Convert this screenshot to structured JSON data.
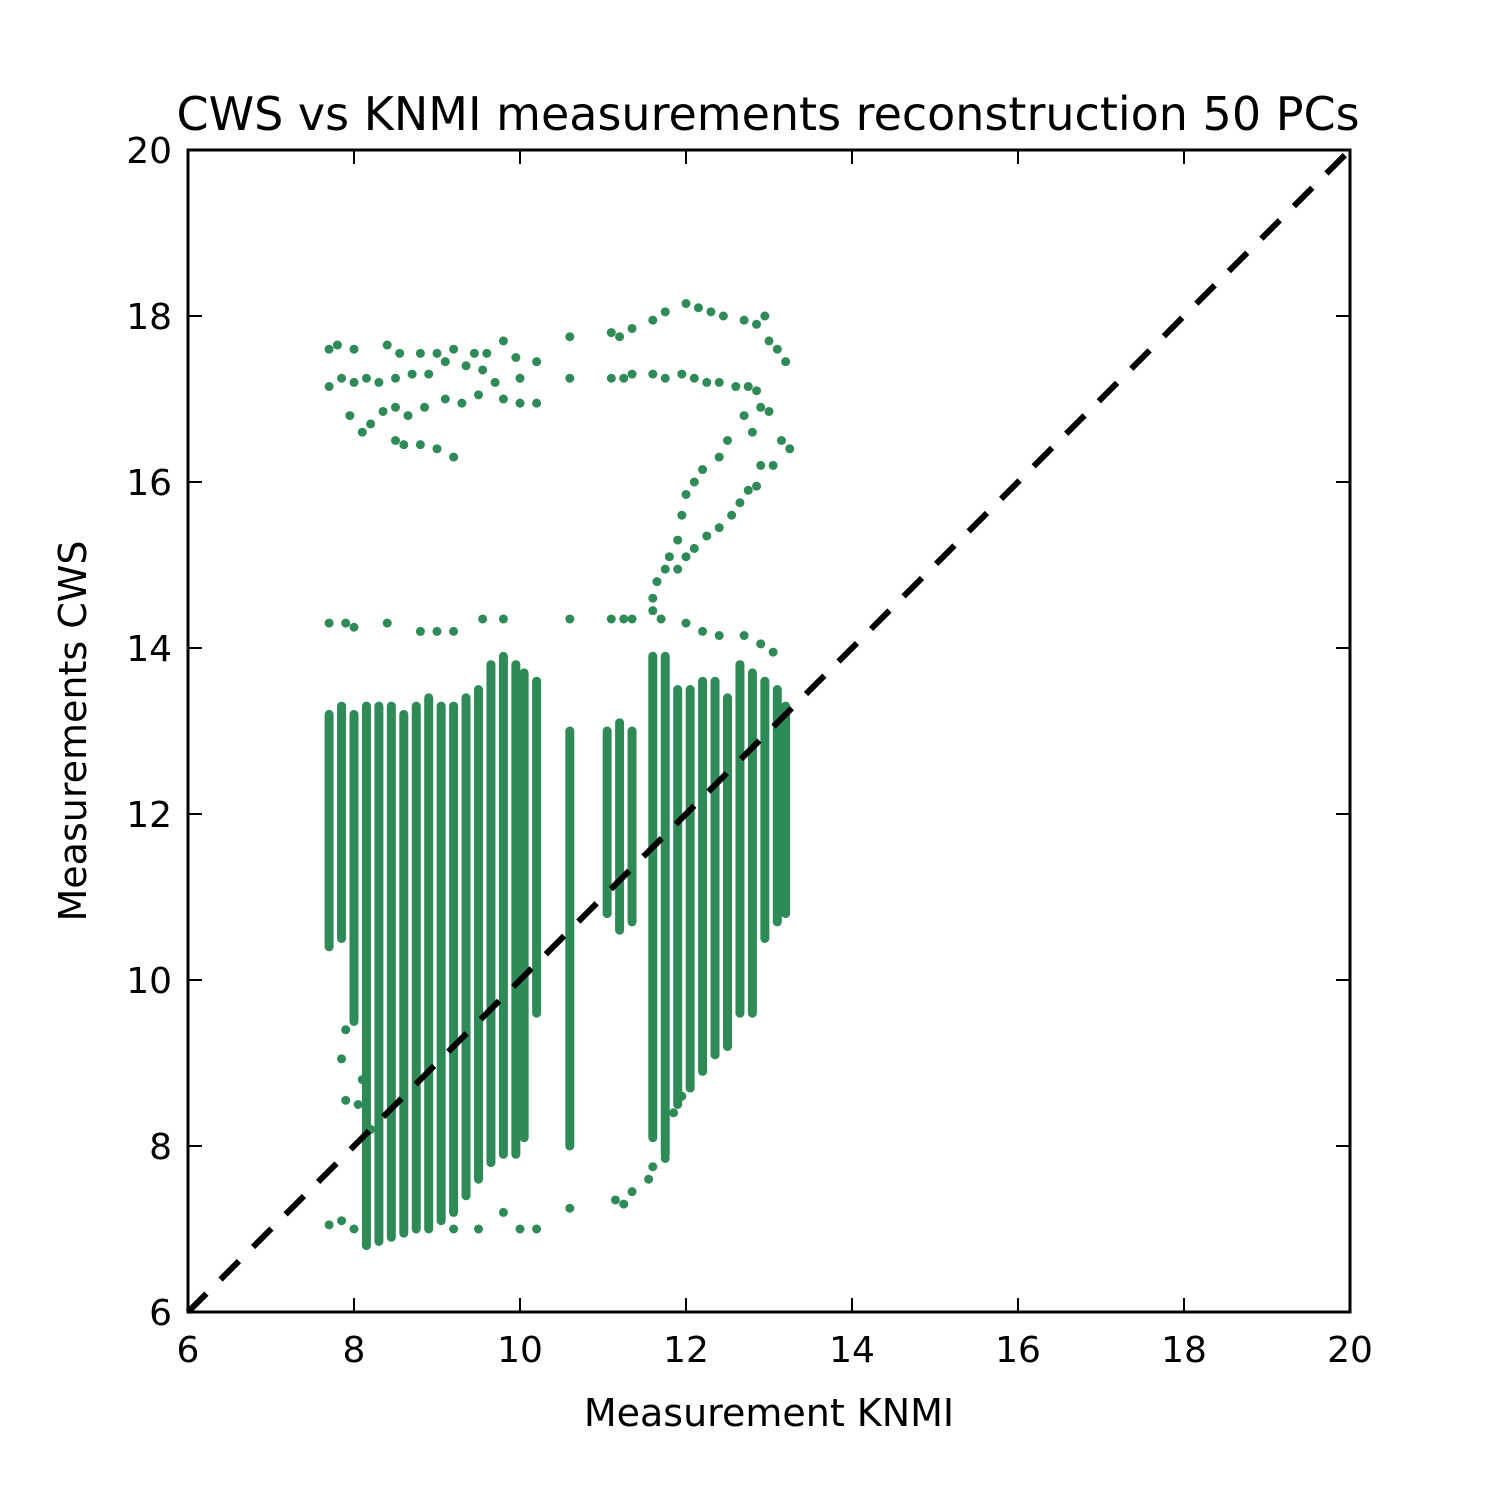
{
  "chart_data": {
    "type": "scatter",
    "title": "CWS vs KNMI measurements reconstruction 50 PCs",
    "xlabel": "Measurement KNMI",
    "ylabel": "Measurements CWS",
    "xlim": [
      6,
      20
    ],
    "ylim": [
      6,
      20
    ],
    "xticks": [
      "6",
      "8",
      "10",
      "12",
      "14",
      "16",
      "18",
      "20"
    ],
    "yticks": [
      "6",
      "8",
      "10",
      "12",
      "14",
      "16",
      "18",
      "20"
    ],
    "grid": false,
    "legend": "none",
    "point_color": "#2e8b57",
    "reference_line": {
      "x": [
        6,
        20
      ],
      "y": [
        6,
        20
      ],
      "style": "dashed",
      "color": "#000000"
    },
    "series": [
      {
        "columns": [
          {
            "x": 7.7,
            "ymin": 10.4,
            "ymax": 13.2
          },
          {
            "x": 7.85,
            "ymin": 10.5,
            "ymax": 13.3
          },
          {
            "x": 8.0,
            "ymin": 9.5,
            "ymax": 13.2
          },
          {
            "x": 8.15,
            "ymin": 6.8,
            "ymax": 13.3
          },
          {
            "x": 8.3,
            "ymin": 6.85,
            "ymax": 13.3
          },
          {
            "x": 8.45,
            "ymin": 6.9,
            "ymax": 13.3
          },
          {
            "x": 8.6,
            "ymin": 6.95,
            "ymax": 13.2
          },
          {
            "x": 8.75,
            "ymin": 7.0,
            "ymax": 13.3
          },
          {
            "x": 8.9,
            "ymin": 7.0,
            "ymax": 13.4
          },
          {
            "x": 9.05,
            "ymin": 7.1,
            "ymax": 13.3
          },
          {
            "x": 9.2,
            "ymin": 7.2,
            "ymax": 13.3
          },
          {
            "x": 9.35,
            "ymin": 7.4,
            "ymax": 13.4
          },
          {
            "x": 9.5,
            "ymin": 7.6,
            "ymax": 13.5
          },
          {
            "x": 9.65,
            "ymin": 7.8,
            "ymax": 13.8
          },
          {
            "x": 9.8,
            "ymin": 7.9,
            "ymax": 13.9
          },
          {
            "x": 9.95,
            "ymin": 7.9,
            "ymax": 13.8
          },
          {
            "x": 10.05,
            "ymin": 8.1,
            "ymax": 13.7
          },
          {
            "x": 10.2,
            "ymin": 9.6,
            "ymax": 13.6
          },
          {
            "x": 10.6,
            "ymin": 8.0,
            "ymax": 13.0
          },
          {
            "x": 11.05,
            "ymin": 10.8,
            "ymax": 13.0
          },
          {
            "x": 11.2,
            "ymin": 10.6,
            "ymax": 13.1
          },
          {
            "x": 11.35,
            "ymin": 10.7,
            "ymax": 13.0
          },
          {
            "x": 11.6,
            "ymin": 8.1,
            "ymax": 13.9
          },
          {
            "x": 11.75,
            "ymin": 7.9,
            "ymax": 13.9
          },
          {
            "x": 11.9,
            "ymin": 8.5,
            "ymax": 13.5
          },
          {
            "x": 12.05,
            "ymin": 8.7,
            "ymax": 13.5
          },
          {
            "x": 12.2,
            "ymin": 8.9,
            "ymax": 13.6
          },
          {
            "x": 12.35,
            "ymin": 9.1,
            "ymax": 13.6
          },
          {
            "x": 12.5,
            "ymin": 9.2,
            "ymax": 13.4
          },
          {
            "x": 12.65,
            "ymin": 9.6,
            "ymax": 13.8
          },
          {
            "x": 12.8,
            "ymin": 9.6,
            "ymax": 13.7
          },
          {
            "x": 12.95,
            "ymin": 10.5,
            "ymax": 13.6
          },
          {
            "x": 13.1,
            "ymin": 10.7,
            "ymax": 13.5
          },
          {
            "x": 13.2,
            "ymin": 10.8,
            "ymax": 13.3
          }
        ],
        "points": [
          [
            7.7,
            17.6
          ],
          [
            7.8,
            17.65
          ],
          [
            8.0,
            17.6
          ],
          [
            7.7,
            17.15
          ],
          [
            7.85,
            17.25
          ],
          [
            8.0,
            17.2
          ],
          [
            8.15,
            17.25
          ],
          [
            8.3,
            17.2
          ],
          [
            8.4,
            17.65
          ],
          [
            8.55,
            17.55
          ],
          [
            8.8,
            17.55
          ],
          [
            9.0,
            17.55
          ],
          [
            9.2,
            17.6
          ],
          [
            9.45,
            17.55
          ],
          [
            9.6,
            17.55
          ],
          [
            9.8,
            17.7
          ],
          [
            9.95,
            17.5
          ],
          [
            10.2,
            17.45
          ],
          [
            10.6,
            17.75
          ],
          [
            8.5,
            17.25
          ],
          [
            8.7,
            17.3
          ],
          [
            8.9,
            17.3
          ],
          [
            9.1,
            17.45
          ],
          [
            9.35,
            17.4
          ],
          [
            9.55,
            17.35
          ],
          [
            9.7,
            17.2
          ],
          [
            10.0,
            17.25
          ],
          [
            7.95,
            16.8
          ],
          [
            8.1,
            16.6
          ],
          [
            8.2,
            16.7
          ],
          [
            8.35,
            16.85
          ],
          [
            8.5,
            16.9
          ],
          [
            8.65,
            16.8
          ],
          [
            8.85,
            16.9
          ],
          [
            9.1,
            17.0
          ],
          [
            9.3,
            16.95
          ],
          [
            9.5,
            17.05
          ],
          [
            9.8,
            17.0
          ],
          [
            10.0,
            16.95
          ],
          [
            10.2,
            16.95
          ],
          [
            8.5,
            16.5
          ],
          [
            8.6,
            16.45
          ],
          [
            8.8,
            16.45
          ],
          [
            9.0,
            16.4
          ],
          [
            9.2,
            16.3
          ],
          [
            10.6,
            17.25
          ],
          [
            11.1,
            17.8
          ],
          [
            11.2,
            17.75
          ],
          [
            11.35,
            17.85
          ],
          [
            11.6,
            17.95
          ],
          [
            11.75,
            18.05
          ],
          [
            12.0,
            18.15
          ],
          [
            12.15,
            18.1
          ],
          [
            12.3,
            18.05
          ],
          [
            12.45,
            18.0
          ],
          [
            12.7,
            17.95
          ],
          [
            12.85,
            17.9
          ],
          [
            12.95,
            18.0
          ],
          [
            13.0,
            17.7
          ],
          [
            13.1,
            17.6
          ],
          [
            13.2,
            17.45
          ],
          [
            11.1,
            17.25
          ],
          [
            11.25,
            17.25
          ],
          [
            11.35,
            17.3
          ],
          [
            11.6,
            17.3
          ],
          [
            11.75,
            17.25
          ],
          [
            11.95,
            17.3
          ],
          [
            12.1,
            17.25
          ],
          [
            12.25,
            17.2
          ],
          [
            12.4,
            17.2
          ],
          [
            12.6,
            17.15
          ],
          [
            12.75,
            17.15
          ],
          [
            12.85,
            17.1
          ],
          [
            12.9,
            16.9
          ],
          [
            13.0,
            16.85
          ],
          [
            12.7,
            16.8
          ],
          [
            12.8,
            16.6
          ],
          [
            13.05,
            16.2
          ],
          [
            13.15,
            16.5
          ],
          [
            13.25,
            16.4
          ],
          [
            12.9,
            16.2
          ],
          [
            12.85,
            15.95
          ],
          [
            12.5,
            16.5
          ],
          [
            12.4,
            16.3
          ],
          [
            12.2,
            16.15
          ],
          [
            12.1,
            16.0
          ],
          [
            12.0,
            15.85
          ],
          [
            11.95,
            15.6
          ],
          [
            11.9,
            15.3
          ],
          [
            11.8,
            15.1
          ],
          [
            11.75,
            14.95
          ],
          [
            11.65,
            14.8
          ],
          [
            11.6,
            14.6
          ],
          [
            12.75,
            15.9
          ],
          [
            12.65,
            15.75
          ],
          [
            12.55,
            15.6
          ],
          [
            12.4,
            15.45
          ],
          [
            12.25,
            15.35
          ],
          [
            12.1,
            15.2
          ],
          [
            12.0,
            15.1
          ],
          [
            11.9,
            14.95
          ],
          [
            7.7,
            14.3
          ],
          [
            7.9,
            14.3
          ],
          [
            8.0,
            14.25
          ],
          [
            8.4,
            14.3
          ],
          [
            8.8,
            14.2
          ],
          [
            9.0,
            14.2
          ],
          [
            9.2,
            14.2
          ],
          [
            9.55,
            14.35
          ],
          [
            9.8,
            14.35
          ],
          [
            10.6,
            14.35
          ],
          [
            11.1,
            14.35
          ],
          [
            11.25,
            14.35
          ],
          [
            11.35,
            14.35
          ],
          [
            11.6,
            14.45
          ],
          [
            11.7,
            14.35
          ],
          [
            12.0,
            14.3
          ],
          [
            12.2,
            14.2
          ],
          [
            12.4,
            14.15
          ],
          [
            12.7,
            14.15
          ],
          [
            12.9,
            14.05
          ],
          [
            13.05,
            13.95
          ],
          [
            7.7,
            7.05
          ],
          [
            7.85,
            7.1
          ],
          [
            8.0,
            7.0
          ],
          [
            9.2,
            7.0
          ],
          [
            9.5,
            7.0
          ],
          [
            9.8,
            7.2
          ],
          [
            10.0,
            7.0
          ],
          [
            10.2,
            7.0
          ],
          [
            10.6,
            7.25
          ],
          [
            11.15,
            7.35
          ],
          [
            11.25,
            7.3
          ],
          [
            11.35,
            7.45
          ],
          [
            11.55,
            7.6
          ],
          [
            11.6,
            7.75
          ],
          [
            11.75,
            7.85
          ],
          [
            11.85,
            8.4
          ],
          [
            11.95,
            8.6
          ],
          [
            12.05,
            8.7
          ],
          [
            12.2,
            8.9
          ],
          [
            12.35,
            9.1
          ],
          [
            12.5,
            9.2
          ],
          [
            7.9,
            8.55
          ],
          [
            8.05,
            8.5
          ],
          [
            8.1,
            8.8
          ],
          [
            8.2,
            8.2
          ],
          [
            7.85,
            9.05
          ],
          [
            7.9,
            9.4
          ]
        ]
      }
    ]
  }
}
